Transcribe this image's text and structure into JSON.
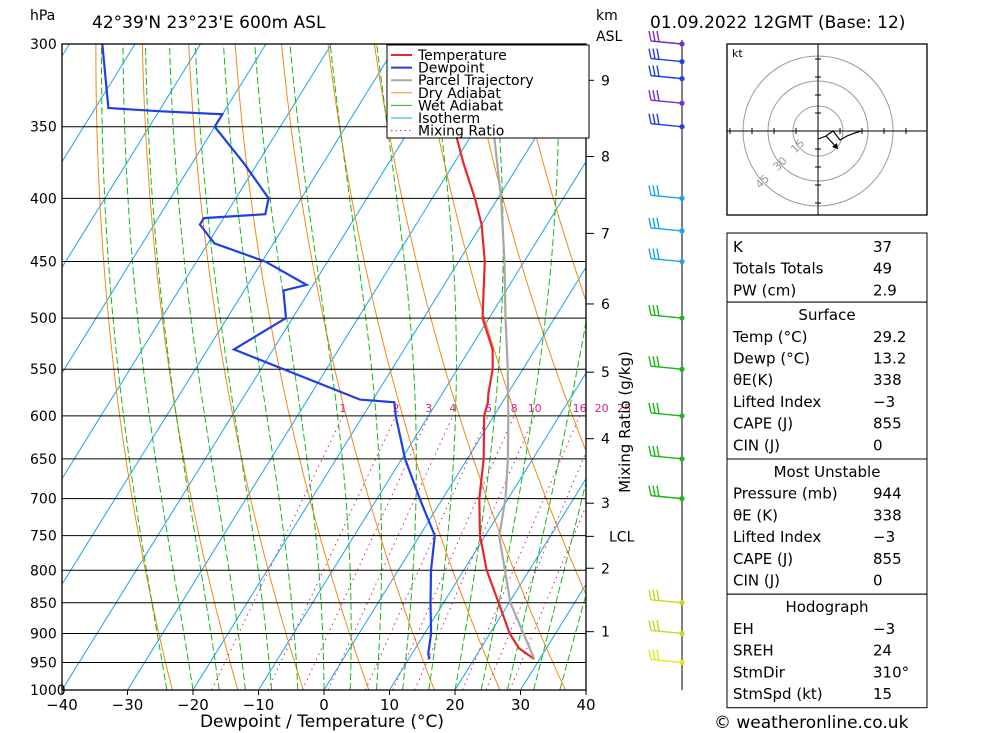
{
  "header": {
    "left_unit": "hPa",
    "location": "42°39'N 23°23'E 600m ASL",
    "km_unit": "km",
    "asl_unit": "ASL",
    "datetime": "01.09.2022 12GMT (Base: 12)"
  },
  "footer": {
    "copyright": "© weatheronline.co.uk"
  },
  "colors": {
    "temperature": "#e8262a",
    "dewpoint": "#1f3fe0",
    "parcel": "#a8a8a8",
    "dry_adiabat": "#f08a1c",
    "wet_adiabat": "#17b817",
    "isotherm": "#1aa6e6",
    "mixing_ratio": "#d0208a"
  },
  "chart_data": {
    "type": "line",
    "title": "42°39'N 23°23'E 600m ASL",
    "xlabel": "Dewpoint / Temperature (°C)",
    "ylabel": "hPa",
    "xlim": [
      -40,
      40
    ],
    "ylim": [
      1000,
      300
    ],
    "y_scale": "log",
    "skew": "skew-T",
    "grid": true,
    "legend_position": "top-right",
    "x_ticks": [
      "−40",
      "−30",
      "−20",
      "−10",
      "0",
      "10",
      "20",
      "30",
      "40"
    ],
    "pressure_levels": [
      300,
      350,
      400,
      450,
      500,
      550,
      600,
      650,
      700,
      750,
      800,
      850,
      900,
      950,
      1000
    ],
    "height_km_ticks": [
      {
        "label": "9",
        "p": 321
      },
      {
        "label": "8",
        "p": 370
      },
      {
        "label": "7",
        "p": 427
      },
      {
        "label": "6",
        "p": 487
      },
      {
        "label": "5",
        "p": 553
      },
      {
        "label": "4",
        "p": 626
      },
      {
        "label": "3",
        "p": 706
      },
      {
        "label": "2",
        "p": 797
      },
      {
        "label": "1",
        "p": 897
      }
    ],
    "lcl": {
      "label": "LCL",
      "p": 751
    },
    "mixing_ratio_axis_label": "Mixing Ratio (g/kg)",
    "mixing_ratio_labels": [
      "1",
      "2",
      "3",
      "4",
      "6",
      "8",
      "10",
      "16",
      "20",
      "25"
    ],
    "series": [
      {
        "name": "Temperature",
        "points": [
          [
            944,
            29.2
          ],
          [
            925,
            25.8
          ],
          [
            900,
            23.0
          ],
          [
            850,
            18.4
          ],
          [
            800,
            13.5
          ],
          [
            750,
            9.2
          ],
          [
            700,
            5.6
          ],
          [
            650,
            2.5
          ],
          [
            600,
            -1.5
          ],
          [
            585,
            -2.2
          ],
          [
            575,
            -3.0
          ],
          [
            550,
            -4.6
          ],
          [
            530,
            -6.5
          ],
          [
            500,
            -11.0
          ],
          [
            450,
            -16.0
          ],
          [
            420,
            -20.0
          ],
          [
            400,
            -23.5
          ],
          [
            375,
            -28.5
          ],
          [
            350,
            -33.5
          ],
          [
            320,
            -40.0
          ],
          [
            300,
            -45.5
          ]
        ]
      },
      {
        "name": "Dewpoint",
        "points": [
          [
            944,
            13.2
          ],
          [
            935,
            12.5
          ],
          [
            900,
            11.0
          ],
          [
            850,
            8.0
          ],
          [
            800,
            5.0
          ],
          [
            750,
            2.3
          ],
          [
            700,
            -3.5
          ],
          [
            650,
            -9.5
          ],
          [
            600,
            -15.0
          ],
          [
            585,
            -16.5
          ],
          [
            582,
            -22.0
          ],
          [
            530,
            -46.0
          ],
          [
            500,
            -41.0
          ],
          [
            475,
            -44.0
          ],
          [
            470,
            -41.0
          ],
          [
            450,
            -49.5
          ],
          [
            435,
            -59.0
          ],
          [
            420,
            -63.0
          ],
          [
            415,
            -63.0
          ],
          [
            412,
            -54.0
          ],
          [
            400,
            -55.0
          ],
          [
            375,
            -62.0
          ],
          [
            350,
            -70.0
          ],
          [
            342,
            -70.0
          ],
          [
            340,
            -80.0
          ],
          [
            338,
            -88.0
          ],
          [
            300,
            -95.0
          ]
        ]
      },
      {
        "name": "Parcel Trajectory",
        "points": [
          [
            944,
            29.2
          ],
          [
            850,
            20.2
          ],
          [
            751,
            12.2
          ],
          [
            700,
            9.6
          ],
          [
            650,
            6.2
          ],
          [
            600,
            2.2
          ],
          [
            550,
            -2.3
          ],
          [
            500,
            -7.5
          ],
          [
            450,
            -13.0
          ],
          [
            400,
            -19.5
          ],
          [
            350,
            -27.5
          ],
          [
            300,
            -37.0
          ]
        ]
      },
      {
        "name": "Dry Adiabat",
        "points": []
      },
      {
        "name": "Wet Adiabat",
        "points": []
      },
      {
        "name": "Isotherm",
        "points": []
      },
      {
        "name": "Mixing Ratio",
        "points": []
      }
    ],
    "wind_barbs": [
      {
        "p": 300,
        "color": "#7a2cc7"
      },
      {
        "p": 310,
        "color": "#1f3fe0"
      },
      {
        "p": 320,
        "color": "#1f3fe0"
      },
      {
        "p": 335,
        "color": "#7a2cc7"
      },
      {
        "p": 350,
        "color": "#1f3fe0"
      },
      {
        "p": 400,
        "color": "#1aa6e6"
      },
      {
        "p": 425,
        "color": "#1aa6e6"
      },
      {
        "p": 450,
        "color": "#1aa6e6"
      },
      {
        "p": 500,
        "color": "#17b817"
      },
      {
        "p": 550,
        "color": "#17b817"
      },
      {
        "p": 600,
        "color": "#17b817"
      },
      {
        "p": 650,
        "color": "#17b817"
      },
      {
        "p": 700,
        "color": "#17b817"
      },
      {
        "p": 850,
        "color": "#b6e020"
      },
      {
        "p": 900,
        "color": "#b6e020"
      },
      {
        "p": 950,
        "color": "#e6e620"
      }
    ]
  },
  "hodograph": {
    "unit": "kt",
    "ring_labels": [
      "15",
      "30",
      "45"
    ]
  },
  "indices": {
    "general": [
      {
        "label": "K",
        "value": "37"
      },
      {
        "label": "Totals Totals",
        "value": "49"
      },
      {
        "label": "PW (cm)",
        "value": "2.9"
      }
    ],
    "surface": {
      "title": "Surface",
      "rows": [
        {
          "label": "Temp (°C)",
          "value": "29.2"
        },
        {
          "label": "Dewp (°C)",
          "value": "13.2"
        },
        {
          "label": "θE(K)",
          "value": "338"
        },
        {
          "label": "Lifted Index",
          "value": "−3"
        },
        {
          "label": "CAPE (J)",
          "value": "855"
        },
        {
          "label": "CIN (J)",
          "value": "0"
        }
      ]
    },
    "most_unstable": {
      "title": "Most Unstable",
      "rows": [
        {
          "label": "Pressure (mb)",
          "value": "944"
        },
        {
          "label": "θE (K)",
          "value": "338"
        },
        {
          "label": "Lifted Index",
          "value": "−3"
        },
        {
          "label": "CAPE (J)",
          "value": "855"
        },
        {
          "label": "CIN (J)",
          "value": "0"
        }
      ]
    },
    "hodograph": {
      "title": "Hodograph",
      "rows": [
        {
          "label": "EH",
          "value": "−3"
        },
        {
          "label": "SREH",
          "value": "24"
        },
        {
          "label": "StmDir",
          "value": "310°"
        },
        {
          "label": "StmSpd (kt)",
          "value": "15"
        }
      ]
    }
  }
}
